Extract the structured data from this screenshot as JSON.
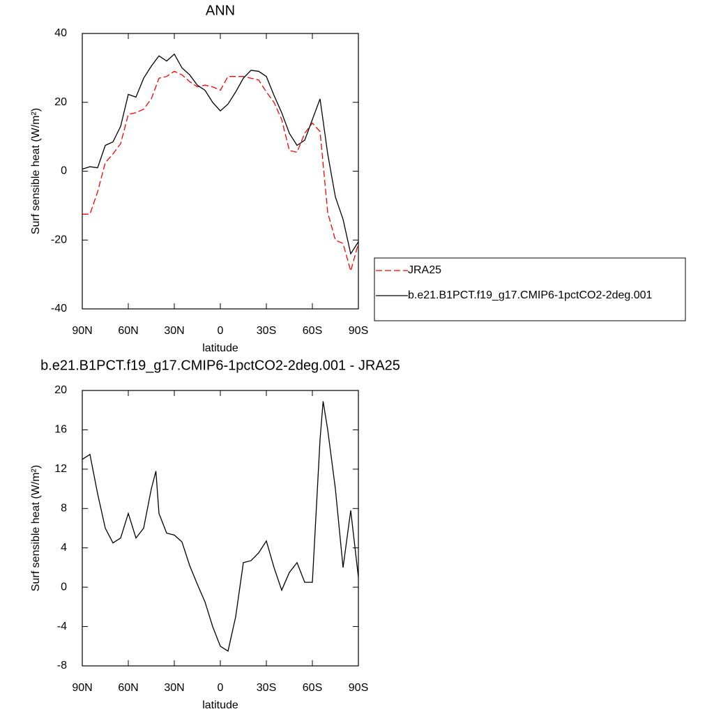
{
  "chart_data": [
    {
      "type": "line",
      "title": "ANN",
      "xlabel": "latitude",
      "ylabel": "Surf sensible heat (W/m²)",
      "x": [
        90,
        85,
        80,
        75,
        70,
        65,
        60,
        55,
        50,
        45,
        40,
        35,
        30,
        25,
        20,
        15,
        10,
        5,
        0,
        -5,
        -10,
        -15,
        -20,
        -25,
        -30,
        -35,
        -40,
        -45,
        -50,
        -55,
        -60,
        -65,
        -70,
        -75,
        -80,
        -85,
        -90
      ],
      "series": [
        {
          "name": "JRA25",
          "color": "#ff0000",
          "dashed": true,
          "values": [
            -12.5,
            -12.5,
            -6,
            2.5,
            5,
            8,
            16.5,
            17,
            18,
            21,
            27,
            27.5,
            29,
            28,
            26,
            24.5,
            25,
            24.5,
            23.5,
            27.5,
            27.5,
            27.5,
            27,
            26.5,
            23,
            20,
            15,
            6,
            5.5,
            11,
            14,
            11.5,
            -12,
            -20,
            -21,
            -29,
            -21
          ]
        },
        {
          "name": "b.e21.B1PCT.f19_g17.CMIP6-1pctCO2-2deg.001",
          "color": "#000000",
          "dashed": false,
          "values": [
            0.6,
            1.3,
            1,
            7.5,
            8.5,
            13,
            22.3,
            21.5,
            27,
            30.5,
            33.5,
            32,
            34,
            30,
            28,
            25,
            23.5,
            20,
            17.5,
            19.5,
            23,
            27,
            29.3,
            29,
            27.5,
            22,
            17,
            11,
            7.5,
            9,
            15,
            21,
            5,
            -7.5,
            -14,
            -24,
            -20.5
          ]
        }
      ],
      "xlim": [
        90,
        -90
      ],
      "xticks": [
        {
          "value": 90,
          "label": "90N"
        },
        {
          "value": 60,
          "label": "60N"
        },
        {
          "value": 30,
          "label": "30N"
        },
        0,
        {
          "value": -30,
          "label": "30S"
        },
        {
          "value": -60,
          "label": "60S"
        },
        {
          "value": -90,
          "label": "90S"
        }
      ],
      "ylim": [
        -40,
        40
      ],
      "yticks": [
        -40,
        -20,
        0,
        20,
        40
      ],
      "legend": "outside-right"
    },
    {
      "type": "line",
      "title": "b.e21.B1PCT.f19_g17.CMIP6-1pctCO2-2deg.001 - JRA25",
      "xlabel": "latitude",
      "ylabel": "Surf sensible heat (W/m²)",
      "x": [
        90,
        85,
        80,
        75,
        70,
        65,
        60,
        55,
        50,
        45,
        42,
        40,
        35,
        30,
        25,
        20,
        15,
        10,
        5,
        0,
        -5,
        -10,
        -15,
        -20,
        -25,
        -30,
        -35,
        -40,
        -45,
        -50,
        -55,
        -60,
        -65,
        -67,
        -70,
        -75,
        -80,
        -85,
        -90
      ],
      "series": [
        {
          "color": "#000000",
          "dashed": false,
          "values": [
            13,
            13.5,
            9.5,
            6,
            4.5,
            5,
            7.5,
            5,
            6,
            10,
            11.8,
            7.5,
            5.5,
            5.3,
            4.6,
            2.2,
            0.3,
            -1.5,
            -4,
            -6,
            -6.5,
            -3,
            2.5,
            2.7,
            3.5,
            4.7,
            2,
            -0.3,
            1.5,
            2.5,
            0.5,
            0.5,
            15,
            18.9,
            16,
            10,
            2,
            7.8,
            1
          ]
        }
      ],
      "xlim": [
        90,
        -90
      ],
      "xticks": [
        {
          "value": 90,
          "label": "90N"
        },
        {
          "value": 60,
          "label": "60N"
        },
        {
          "value": 30,
          "label": "30N"
        },
        0,
        {
          "value": -30,
          "label": "30S"
        },
        {
          "value": -60,
          "label": "60S"
        },
        {
          "value": -90,
          "label": "90S"
        }
      ],
      "ylim": [
        -8,
        20
      ],
      "yticks": [
        -8,
        -4,
        0,
        4,
        8,
        12,
        16,
        20
      ]
    }
  ]
}
